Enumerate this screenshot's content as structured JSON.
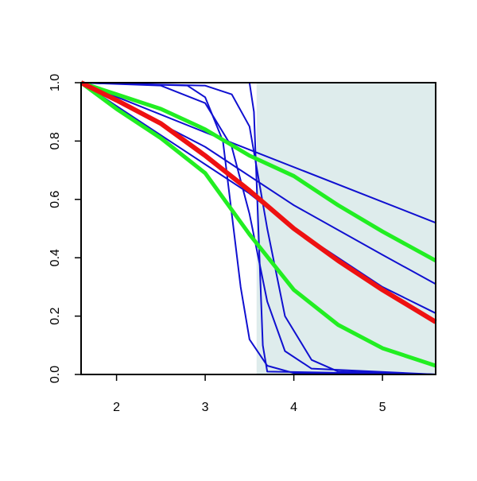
{
  "chart_data": {
    "type": "line",
    "xlim": [
      1.6,
      5.6
    ],
    "ylim": [
      0,
      1
    ],
    "xticks": [
      2,
      3,
      4,
      5
    ],
    "yticks": [
      {
        "value": 0,
        "label": "0.0"
      },
      0.2,
      0.4,
      0.6,
      0.8,
      {
        "value": 1,
        "label": "1.0"
      }
    ],
    "shade": {
      "xlim": [
        3.58,
        5.6
      ],
      "color": "#deecec"
    },
    "series": [
      {
        "color": "#1010d0",
        "width": 2,
        "x": [
          1.6,
          3.0,
          5.6
        ],
        "values": [
          1,
          0.83,
          0.52
        ]
      },
      {
        "color": "#1010d0",
        "width": 2,
        "x": [
          1.6,
          3.0,
          4.0,
          5.0,
          5.6
        ],
        "values": [
          1,
          0.78,
          0.58,
          0.41,
          0.31
        ]
      },
      {
        "color": "#1010d0",
        "width": 2,
        "x": [
          1.6,
          2.5,
          3.0,
          3.5,
          4.0,
          4.5,
          5.0,
          5.6
        ],
        "values": [
          1,
          0.82,
          0.72,
          0.62,
          0.5,
          0.4,
          0.3,
          0.21
        ]
      },
      {
        "color": "#1010d0",
        "width": 2,
        "x": [
          1.6,
          2.8,
          3.0,
          3.2,
          3.3,
          3.4,
          3.5,
          3.7,
          4.0,
          5.6
        ],
        "values": [
          1,
          0.99,
          0.95,
          0.8,
          0.55,
          0.3,
          0.12,
          0.03,
          0.005,
          0
        ]
      },
      {
        "color": "#1010d0",
        "width": 2,
        "x": [
          1.6,
          3.5,
          3.55,
          3.6,
          3.65,
          3.7,
          5.6
        ],
        "values": [
          1,
          1,
          0.9,
          0.5,
          0.1,
          0.01,
          0
        ]
      },
      {
        "color": "#1010d0",
        "width": 2,
        "x": [
          1.6,
          3.0,
          3.3,
          3.5,
          3.7,
          3.9,
          4.2,
          4.5,
          5.6
        ],
        "values": [
          1,
          0.99,
          0.96,
          0.85,
          0.5,
          0.2,
          0.05,
          0.01,
          0
        ]
      },
      {
        "color": "#1010d0",
        "width": 2,
        "x": [
          1.6,
          2.5,
          3.0,
          3.3,
          3.5,
          3.7,
          3.9,
          4.2,
          5.6
        ],
        "values": [
          1,
          0.99,
          0.93,
          0.78,
          0.55,
          0.25,
          0.08,
          0.02,
          0
        ]
      },
      {
        "color": "#22ee22",
        "width": 5,
        "x": [
          1.6,
          2.0,
          2.5,
          3.0,
          3.5,
          4.0,
          4.5,
          5.0,
          5.6
        ],
        "values": [
          1,
          0.96,
          0.91,
          0.84,
          0.75,
          0.68,
          0.58,
          0.49,
          0.39
        ]
      },
      {
        "color": "#22ee22",
        "width": 5,
        "x": [
          1.6,
          2.0,
          2.5,
          3.0,
          3.5,
          4.0,
          4.5,
          5.0,
          5.6
        ],
        "values": [
          1,
          0.91,
          0.81,
          0.69,
          0.48,
          0.29,
          0.17,
          0.09,
          0.03
        ]
      },
      {
        "color": "#ee1111",
        "width": 6,
        "x": [
          1.6,
          2.0,
          2.5,
          3.0,
          3.5,
          4.0,
          4.5,
          5.0,
          5.6
        ],
        "values": [
          1,
          0.94,
          0.86,
          0.75,
          0.63,
          0.5,
          0.39,
          0.29,
          0.18
        ]
      }
    ]
  }
}
